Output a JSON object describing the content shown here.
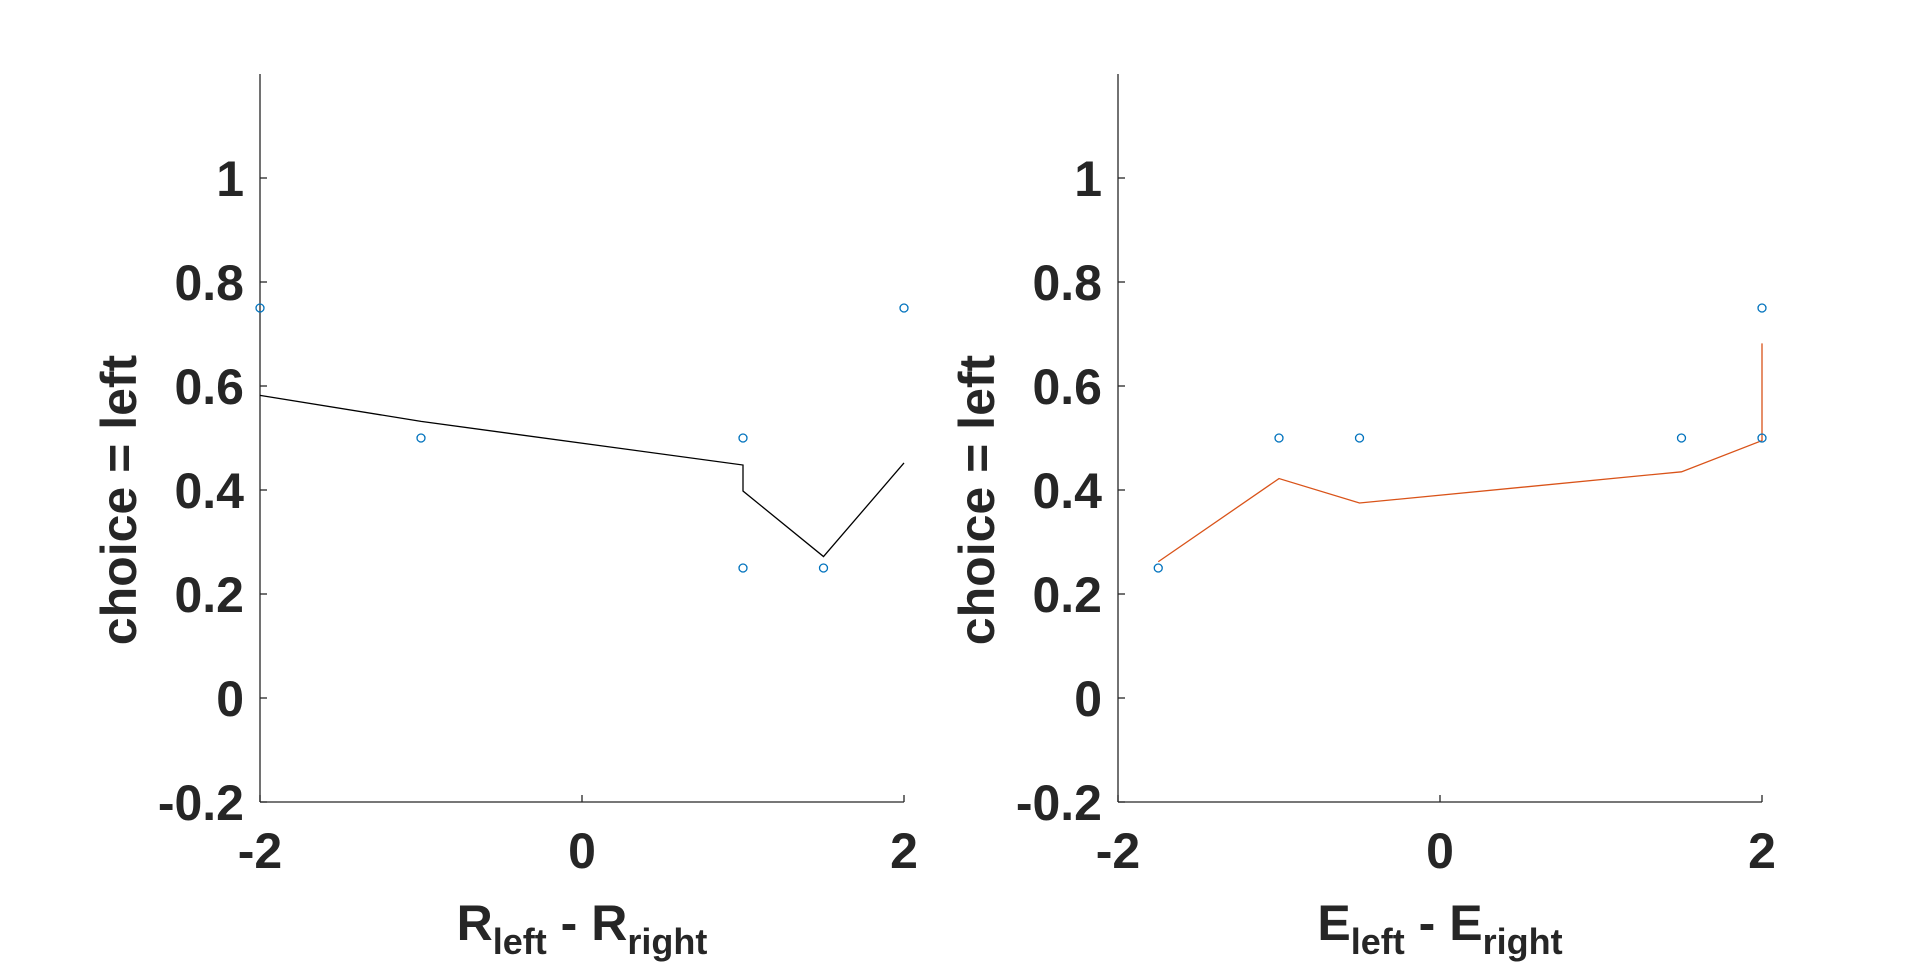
{
  "chart_data": [
    {
      "type": "scatter",
      "title": "",
      "xlabel": {
        "main1": "R",
        "sub1": "left",
        "sep": " - ",
        "main2": "R",
        "sub2": "right"
      },
      "ylabel": "choice = left",
      "xlim": [
        -2,
        2
      ],
      "ylim": [
        -0.2,
        1.2
      ],
      "xticks": [
        -2,
        0,
        2
      ],
      "yticks": [
        -0.2,
        0,
        0.2,
        0.4,
        0.6,
        0.8,
        1
      ],
      "xtick_labels": [
        "-2",
        "0",
        "2"
      ],
      "ytick_labels": [
        "-0.2",
        "0",
        "0.2",
        "0.4",
        "0.6",
        "0.8",
        "1"
      ],
      "grid": false,
      "series": [
        {
          "kind": "points",
          "color": "#0072BD",
          "x": [
            -2,
            -1,
            1,
            1,
            1.5,
            2
          ],
          "y": [
            0.75,
            0.5,
            0.5,
            0.25,
            0.25,
            0.75
          ]
        },
        {
          "kind": "line",
          "color": "#000000",
          "x": [
            -2,
            -1,
            1,
            1,
            1.5,
            2
          ],
          "y": [
            0.582,
            0.532,
            0.448,
            0.398,
            0.272,
            0.452
          ]
        }
      ]
    },
    {
      "type": "scatter",
      "title": "",
      "xlabel": {
        "main1": "E",
        "sub1": "left",
        "sep": " - ",
        "main2": "E",
        "sub2": "right"
      },
      "ylabel": "choice = left",
      "xlim": [
        -2,
        2
      ],
      "ylim": [
        -0.2,
        1.2
      ],
      "xticks": [
        -2,
        0,
        2
      ],
      "yticks": [
        -0.2,
        0,
        0.2,
        0.4,
        0.6,
        0.8,
        1
      ],
      "xtick_labels": [
        "-2",
        "0",
        "2"
      ],
      "ytick_labels": [
        "-0.2",
        "0",
        "0.2",
        "0.4",
        "0.6",
        "0.8",
        "1"
      ],
      "grid": false,
      "series": [
        {
          "kind": "points",
          "color": "#0072BD",
          "x": [
            -1.75,
            -1,
            -0.5,
            1.5,
            2,
            2
          ],
          "y": [
            0.25,
            0.5,
            0.5,
            0.5,
            0.75,
            0.5
          ]
        },
        {
          "kind": "line",
          "color": "#D95319",
          "x": [
            -1.75,
            -1,
            -0.5,
            1.5,
            2,
            2
          ],
          "y": [
            0.262,
            0.422,
            0.375,
            0.435,
            0.495,
            0.682
          ]
        }
      ]
    }
  ]
}
